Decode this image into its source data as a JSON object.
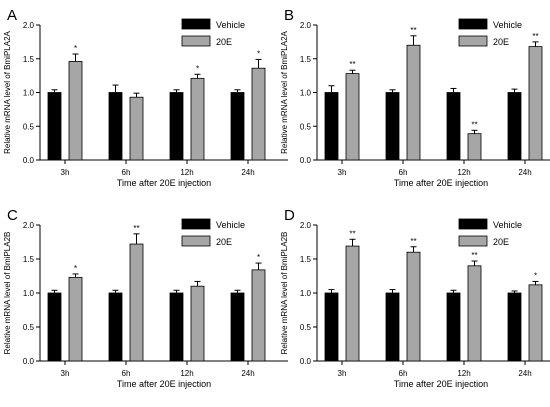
{
  "colors": {
    "vehicle": "#000000",
    "treatment": "#a6a6a6",
    "axis": "#000000"
  },
  "chart_data": [
    {
      "panel_label": "A",
      "type": "bar",
      "ylabel": "Relative mRNA level of BmiPLA2A",
      "xlabel": "Time after 20E injection",
      "ylim": [
        0,
        2.0
      ],
      "yticks": [
        "0.0",
        "0.5",
        "1.0",
        "1.5",
        "2.0"
      ],
      "grid": false,
      "legend_position": "top-right",
      "categories": [
        "3h",
        "6h",
        "12h",
        "24h"
      ],
      "series": [
        {
          "name": "Vehicle",
          "values": [
            1.0,
            1.0,
            1.0,
            1.0
          ],
          "errors": [
            0.04,
            0.11,
            0.04,
            0.04
          ]
        },
        {
          "name": "20E",
          "values": [
            1.46,
            0.93,
            1.21,
            1.36
          ],
          "errors": [
            0.11,
            0.06,
            0.06,
            0.13
          ]
        }
      ],
      "annotations": [
        "*",
        "",
        "*",
        "*"
      ]
    },
    {
      "panel_label": "B",
      "type": "bar",
      "ylabel": "Relative mRNA level of BmiPLA2A",
      "xlabel": "Time after 20E injection",
      "ylim": [
        0,
        2.0
      ],
      "yticks": [
        "0.0",
        "0.5",
        "1.0",
        "1.5",
        "2.0"
      ],
      "grid": false,
      "legend_position": "top-right",
      "categories": [
        "3h",
        "6h",
        "12h",
        "24h"
      ],
      "series": [
        {
          "name": "Vehicle",
          "values": [
            1.0,
            1.0,
            1.0,
            1.0
          ],
          "errors": [
            0.1,
            0.04,
            0.06,
            0.05
          ]
        },
        {
          "name": "20E",
          "values": [
            1.28,
            1.7,
            0.39,
            1.68
          ],
          "errors": [
            0.05,
            0.14,
            0.05,
            0.07
          ]
        }
      ],
      "annotations": [
        "**",
        "**",
        "**",
        "**"
      ]
    },
    {
      "panel_label": "C",
      "type": "bar",
      "ylabel": "Relative mRNA level of BmiPLA2B",
      "xlabel": "Time after 20E injection",
      "ylim": [
        0,
        2.0
      ],
      "yticks": [
        "0.0",
        "0.5",
        "1.0",
        "1.5",
        "2.0"
      ],
      "grid": false,
      "legend_position": "top-right",
      "categories": [
        "3h",
        "6h",
        "12h",
        "24h"
      ],
      "series": [
        {
          "name": "Vehicle",
          "values": [
            1.0,
            1.0,
            1.0,
            1.0
          ],
          "errors": [
            0.04,
            0.04,
            0.04,
            0.04
          ]
        },
        {
          "name": "20E",
          "values": [
            1.23,
            1.72,
            1.1,
            1.34
          ],
          "errors": [
            0.05,
            0.15,
            0.07,
            0.1
          ]
        }
      ],
      "annotations": [
        "*",
        "**",
        "",
        "*"
      ]
    },
    {
      "panel_label": "D",
      "type": "bar",
      "ylabel": "Relative mRNA level of BmiPLA2B",
      "xlabel": "Time after 20E injection",
      "ylim": [
        0,
        2.0
      ],
      "yticks": [
        "0.0",
        "0.5",
        "1.0",
        "1.5",
        "2.0"
      ],
      "grid": false,
      "legend_position": "top-right",
      "categories": [
        "3h",
        "6h",
        "12h",
        "24h"
      ],
      "series": [
        {
          "name": "Vehicle",
          "values": [
            1.0,
            1.0,
            1.0,
            1.0
          ],
          "errors": [
            0.05,
            0.05,
            0.04,
            0.03
          ]
        },
        {
          "name": "20E",
          "values": [
            1.69,
            1.6,
            1.4,
            1.12
          ],
          "errors": [
            0.1,
            0.08,
            0.07,
            0.05
          ]
        }
      ],
      "annotations": [
        "**",
        "**",
        "**",
        "*"
      ]
    }
  ]
}
